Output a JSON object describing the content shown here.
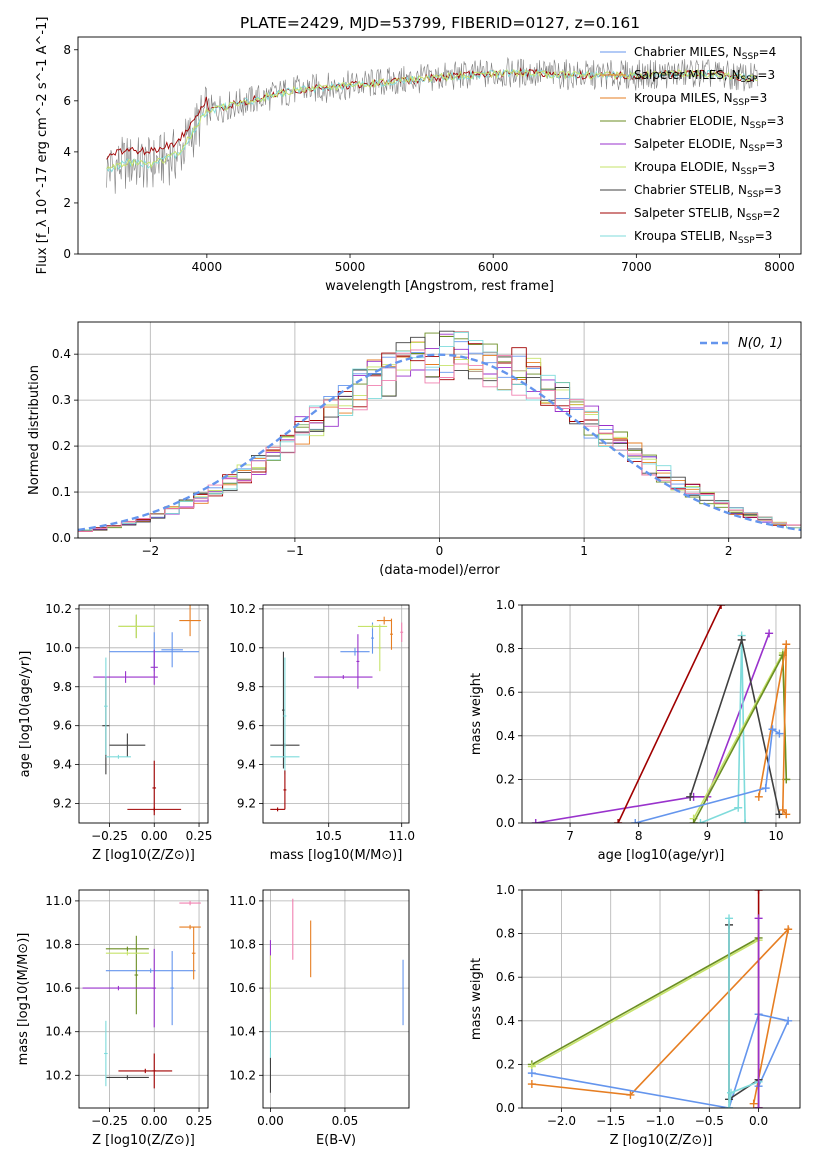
{
  "colors": {
    "cornflowerblue": "#6495ed",
    "orange": "#e67e22",
    "olive": "#6b8e23",
    "purple": "#9932cc",
    "yellowgreen": "#c6e36a",
    "darkgray": "#404040",
    "darkred": "#a00000",
    "cyan": "#7fdbdb",
    "pink": "#f080b0",
    "gray": "#808080"
  },
  "chart_data": [
    {
      "panel": "spectrum",
      "type": "line",
      "title": "PLATE=2429, MJD=53799, FIBERID=0127, z=0.161",
      "xlabel": "wavelength [Angstrom, rest frame]",
      "ylabel": "Flux [f_λ 10^-17 erg cm^-2 s^-1 A^-1]",
      "xlim": [
        3100,
        8150
      ],
      "ylim": [
        0,
        8.5
      ],
      "xticks": [
        "4000",
        "5000",
        "6000",
        "7000",
        "8000"
      ],
      "yticks": [
        "0",
        "2",
        "4",
        "6",
        "8"
      ],
      "legend_position": "right",
      "legend": [
        {
          "label": "Chabrier MILES, N",
          "sub": "SSP",
          "suffix": "=4",
          "color": "#6495ed"
        },
        {
          "label": "Salpeter MILES, N",
          "sub": "SSP",
          "suffix": "=3",
          "color": "#e67e22"
        },
        {
          "label": "Kroupa MILES, N",
          "sub": "SSP",
          "suffix": "=3",
          "color": "#e67e22"
        },
        {
          "label": "Chabrier ELODIE, N",
          "sub": "SSP",
          "suffix": "=3",
          "color": "#6b8e23"
        },
        {
          "label": "Salpeter ELODIE, N",
          "sub": "SSP",
          "suffix": "=3",
          "color": "#9932cc"
        },
        {
          "label": "Kroupa ELODIE, N",
          "sub": "SSP",
          "suffix": "=3",
          "color": "#c6e36a"
        },
        {
          "label": "Chabrier STELIB, N",
          "sub": "SSP",
          "suffix": "=3",
          "color": "#404040"
        },
        {
          "label": "Salpeter STELIB, N",
          "sub": "SSP",
          "suffix": "=2",
          "color": "#a00000"
        },
        {
          "label": "Kroupa STELIB, N",
          "sub": "SSP",
          "suffix": "=3",
          "color": "#7fdbdb"
        }
      ],
      "continuum_shape": {
        "x": [
          3300,
          3450,
          3600,
          3800,
          4000,
          4300,
          4600,
          5000,
          5400,
          5800,
          6200,
          6600,
          7000,
          7400,
          7800
        ],
        "y": [
          3.3,
          3.6,
          3.5,
          3.9,
          5.6,
          6.0,
          6.4,
          6.6,
          6.8,
          7.0,
          7.1,
          7.0,
          7.0,
          7.1,
          6.9
        ]
      }
    },
    {
      "panel": "residual_histogram",
      "type": "line",
      "xlabel": "(data-model)/error",
      "ylabel": "Normed distribution",
      "xlim": [
        -2.5,
        2.5
      ],
      "ylim": [
        0,
        0.47
      ],
      "xticks": [
        "−2",
        "−1",
        "0",
        "1",
        "2"
      ],
      "yticks": [
        "0.0",
        "0.1",
        "0.2",
        "0.3",
        "0.4"
      ],
      "grid": true,
      "legend_position": "top-right",
      "legend": [
        {
          "label": "N(0, 1)",
          "color": "#6495ed",
          "style": "dashed"
        }
      ]
    },
    {
      "panel": "age_vs_Z",
      "type": "scatter",
      "xlabel": "Z [log10(Z/Z⊙)]",
      "ylabel": "age  [log10(age/yr)]",
      "xlim": [
        -0.42,
        0.3
      ],
      "ylim": [
        9.1,
        10.22
      ],
      "xticks": [
        "−0.25",
        "0.00",
        "0.25"
      ],
      "yticks": [
        "9.2",
        "9.4",
        "9.6",
        "9.8",
        "10.0",
        "10.2"
      ],
      "grid": true,
      "points": [
        {
          "x": 0.0,
          "y": 9.98,
          "xerr": 0.25,
          "yerr": 0.1,
          "color": "#6495ed"
        },
        {
          "x": 0.1,
          "y": 9.99,
          "xerr": 0.06,
          "yerr": 0.09,
          "color": "#6495ed"
        },
        {
          "x": 0.2,
          "y": 10.14,
          "xerr": 0.06,
          "yerr": 0.08,
          "color": "#e67e22"
        },
        {
          "x": -0.1,
          "y": 10.11,
          "xerr": 0.1,
          "yerr": 0.06,
          "color": "#6b8e23"
        },
        {
          "x": -0.1,
          "y": 10.11,
          "xerr": 0.1,
          "yerr": 0.06,
          "color": "#c6e36a"
        },
        {
          "x": -0.16,
          "y": 9.85,
          "xerr": 0.18,
          "yerr": 0.03,
          "color": "#9932cc"
        },
        {
          "x": 0.0,
          "y": 9.9,
          "xerr": 0.02,
          "yerr": 0.09,
          "color": "#9932cc"
        },
        {
          "x": -0.15,
          "y": 9.5,
          "xerr": 0.1,
          "yerr": 0.06,
          "color": "#404040"
        },
        {
          "x": -0.27,
          "y": 9.6,
          "xerr": 0.02,
          "yerr": 0.25,
          "color": "#404040"
        },
        {
          "x": -0.2,
          "y": 9.44,
          "xerr": 0.07,
          "yerr": 0.01,
          "color": "#7fdbdb"
        },
        {
          "x": -0.27,
          "y": 9.7,
          "xerr": 0.01,
          "yerr": 0.25,
          "color": "#7fdbdb"
        },
        {
          "x": 0.0,
          "y": 9.17,
          "xerr": 0.15,
          "yerr": 0.01,
          "color": "#a00000"
        },
        {
          "x": 0.0,
          "y": 9.28,
          "xerr": 0.01,
          "yerr": 0.14,
          "color": "#a00000"
        }
      ]
    },
    {
      "panel": "age_vs_mass",
      "type": "scatter",
      "xlabel": "mass [log10(M/M⊙)]",
      "xlim": [
        10.05,
        11.05
      ],
      "ylim": [
        9.1,
        10.22
      ],
      "xticks": [
        "10.5",
        "11.0"
      ],
      "yticks": [
        "9.2",
        "9.4",
        "9.6",
        "9.8",
        "10.0",
        "10.2"
      ],
      "grid": true,
      "points": [
        {
          "x": 10.68,
          "y": 9.98,
          "xerr": 0.1,
          "yerr": 0.02,
          "color": "#6495ed"
        },
        {
          "x": 10.8,
          "y": 10.05,
          "xerr": 0.01,
          "yerr": 0.08,
          "color": "#6495ed"
        },
        {
          "x": 10.88,
          "y": 10.14,
          "xerr": 0.05,
          "yerr": 0.02,
          "color": "#e67e22"
        },
        {
          "x": 10.93,
          "y": 10.07,
          "xerr": 0.01,
          "yerr": 0.08,
          "color": "#e67e22"
        },
        {
          "x": 10.8,
          "y": 10.11,
          "xerr": 0.1,
          "yerr": 0.01,
          "color": "#c6e36a"
        },
        {
          "x": 10.85,
          "y": 10.0,
          "xerr": 0.01,
          "yerr": 0.12,
          "color": "#c6e36a"
        },
        {
          "x": 10.6,
          "y": 9.85,
          "xerr": 0.2,
          "yerr": 0.01,
          "color": "#9932cc"
        },
        {
          "x": 10.7,
          "y": 9.93,
          "xerr": 0.01,
          "yerr": 0.14,
          "color": "#9932cc"
        },
        {
          "x": 10.2,
          "y": 9.5,
          "xerr": 0.1,
          "yerr": 0.01,
          "color": "#404040"
        },
        {
          "x": 10.19,
          "y": 9.68,
          "xerr": 0.01,
          "yerr": 0.3,
          "color": "#404040"
        },
        {
          "x": 10.2,
          "y": 9.44,
          "xerr": 0.1,
          "yerr": 0.01,
          "color": "#7fdbdb"
        },
        {
          "x": 10.2,
          "y": 9.65,
          "xerr": 0.01,
          "yerr": 0.3,
          "color": "#7fdbdb"
        },
        {
          "x": 10.15,
          "y": 9.17,
          "xerr": 0.05,
          "yerr": 0.01,
          "color": "#a00000"
        },
        {
          "x": 10.2,
          "y": 9.27,
          "xerr": 0.01,
          "yerr": 0.1,
          "color": "#a00000"
        },
        {
          "x": 11.0,
          "y": 10.08,
          "xerr": 0.01,
          "yerr": 0.05,
          "color": "#f080b0"
        }
      ]
    },
    {
      "panel": "weight_vs_age",
      "type": "line",
      "xlabel": "age  [log10(age/yr)]",
      "ylabel": "mass weight",
      "xlim": [
        6.3,
        10.35
      ],
      "ylim": [
        0,
        1.0
      ],
      "xticks": [
        "7",
        "8",
        "9",
        "10"
      ],
      "yticks": [
        "0.0",
        "0.2",
        "0.4",
        "0.6",
        "0.8",
        "1.0"
      ],
      "grid": true,
      "series": [
        {
          "color": "#9932cc",
          "x": [
            6.5,
            8.8,
            9.0,
            9.9
          ],
          "y": [
            0.0,
            0.12,
            0.12,
            0.87
          ]
        },
        {
          "color": "#a00000",
          "x": [
            7.7,
            9.2
          ],
          "y": [
            0.0,
            1.0
          ]
        },
        {
          "color": "#7fdbdb",
          "x": [
            8.9,
            9.45,
            9.5,
            9.55
          ],
          "y": [
            0.0,
            0.07,
            0.86,
            0.0
          ]
        },
        {
          "color": "#404040",
          "x": [
            8.75,
            9.5,
            10.05
          ],
          "y": [
            0.12,
            0.84,
            0.04
          ]
        },
        {
          "color": "#c6e36a",
          "x": [
            8.8,
            10.1,
            10.15
          ],
          "y": [
            0.02,
            0.78,
            0.2
          ]
        },
        {
          "color": "#6b8e23",
          "x": [
            8.8,
            10.1,
            10.15
          ],
          "y": [
            0.0,
            0.77,
            0.2
          ]
        },
        {
          "color": "#e67e22",
          "x": [
            9.75,
            10.15,
            10.1,
            10.15
          ],
          "y": [
            0.12,
            0.82,
            0.06,
            0.04
          ]
        },
        {
          "color": "#6495ed",
          "x": [
            7.95,
            9.85,
            9.95,
            10.05
          ],
          "y": [
            0.0,
            0.16,
            0.43,
            0.41
          ]
        }
      ]
    },
    {
      "panel": "mass_vs_Z",
      "type": "scatter",
      "xlabel": "Z [log10(Z/Z⊙)]",
      "ylabel": "mass [log10(M/M⊙)]",
      "xlim": [
        -0.42,
        0.3
      ],
      "ylim": [
        10.05,
        11.05
      ],
      "xticks": [
        "−0.25",
        "0.00",
        "0.25"
      ],
      "yticks": [
        "10.2",
        "10.4",
        "10.6",
        "10.8",
        "11.0"
      ],
      "grid": true,
      "points": [
        {
          "x": -0.02,
          "y": 10.68,
          "xerr": 0.25,
          "yerr": 0.01,
          "color": "#6495ed"
        },
        {
          "x": 0.1,
          "y": 10.6,
          "xerr": 0.01,
          "yerr": 0.17,
          "color": "#6495ed"
        },
        {
          "x": 0.2,
          "y": 10.88,
          "xerr": 0.06,
          "yerr": 0.01,
          "color": "#e67e22"
        },
        {
          "x": 0.22,
          "y": 10.76,
          "xerr": 0.01,
          "yerr": 0.12,
          "color": "#e67e22"
        },
        {
          "x": 0.2,
          "y": 10.99,
          "xerr": 0.06,
          "yerr": 0.01,
          "color": "#f080b0"
        },
        {
          "x": -0.15,
          "y": 10.78,
          "xerr": 0.12,
          "yerr": 0.01,
          "color": "#6b8e23"
        },
        {
          "x": -0.1,
          "y": 10.66,
          "xerr": 0.01,
          "yerr": 0.18,
          "color": "#6b8e23"
        },
        {
          "x": -0.15,
          "y": 10.76,
          "xerr": 0.12,
          "yerr": 0.01,
          "color": "#c6e36a"
        },
        {
          "x": -0.2,
          "y": 10.6,
          "xerr": 0.2,
          "yerr": 0.01,
          "color": "#9932cc"
        },
        {
          "x": 0.0,
          "y": 10.6,
          "xerr": 0.01,
          "yerr": 0.18,
          "color": "#9932cc"
        },
        {
          "x": -0.15,
          "y": 10.19,
          "xerr": 0.12,
          "yerr": 0.01,
          "color": "#404040"
        },
        {
          "x": -0.27,
          "y": 10.3,
          "xerr": 0.01,
          "yerr": 0.15,
          "color": "#7fdbdb"
        },
        {
          "x": -0.05,
          "y": 10.22,
          "xerr": 0.15,
          "yerr": 0.01,
          "color": "#a00000"
        },
        {
          "x": 0.0,
          "y": 10.22,
          "xerr": 0.01,
          "yerr": 0.08,
          "color": "#a00000"
        }
      ]
    },
    {
      "panel": "mass_vs_EBV",
      "type": "scatter",
      "xlabel": "E(B-V)",
      "xlim": [
        -0.005,
        0.093
      ],
      "ylim": [
        10.05,
        11.05
      ],
      "xticks": [
        "0.00",
        "0.05"
      ],
      "yticks": [
        "10.2",
        "10.4",
        "10.6",
        "10.8",
        "11.0"
      ],
      "grid": true,
      "points": [
        {
          "x": 0.015,
          "y": 10.87,
          "xerr": 0.0,
          "yerr": 0.14,
          "color": "#f080b0"
        },
        {
          "x": 0.027,
          "y": 10.78,
          "xerr": 0.0,
          "yerr": 0.13,
          "color": "#e67e22"
        },
        {
          "x": 0.0,
          "y": 10.7,
          "xerr": 0.0,
          "yerr": 0.12,
          "color": "#9932cc"
        },
        {
          "x": 0.0,
          "y": 10.6,
          "xerr": 0.0,
          "yerr": 0.15,
          "color": "#c6e36a"
        },
        {
          "x": 0.0,
          "y": 10.35,
          "xerr": 0.0,
          "yerr": 0.1,
          "color": "#7fdbdb"
        },
        {
          "x": 0.0,
          "y": 10.2,
          "xerr": 0.0,
          "yerr": 0.08,
          "color": "#404040"
        },
        {
          "x": 0.089,
          "y": 10.58,
          "xerr": 0.0,
          "yerr": 0.15,
          "color": "#6495ed"
        }
      ]
    },
    {
      "panel": "weight_vs_Z",
      "type": "line",
      "xlabel": "Z [log10(Z/Z⊙)]",
      "ylabel": "mass weight",
      "xlim": [
        -2.4,
        0.42
      ],
      "ylim": [
        0,
        1.0
      ],
      "xticks": [
        "−2.0",
        "−1.5",
        "−1.0",
        "−0.5",
        "0.0"
      ],
      "yticks": [
        "0.0",
        "0.2",
        "0.4",
        "0.6",
        "0.8",
        "1.0"
      ],
      "grid": true,
      "series": [
        {
          "color": "#6b8e23",
          "x": [
            -2.3,
            0.0
          ],
          "y": [
            0.2,
            0.78
          ]
        },
        {
          "color": "#c6e36a",
          "x": [
            -2.3,
            0.0
          ],
          "y": [
            0.19,
            0.77
          ]
        },
        {
          "color": "#e67e22",
          "x": [
            -2.3,
            -1.3,
            0.3,
            -0.05
          ],
          "y": [
            0.11,
            0.06,
            0.82,
            0.02
          ]
        },
        {
          "color": "#6495ed",
          "x": [
            -2.3,
            -0.3,
            0.0,
            0.3,
            0.0
          ],
          "y": [
            0.16,
            0.0,
            0.43,
            0.4,
            0.1
          ]
        },
        {
          "color": "#404040",
          "x": [
            -0.3,
            -0.3,
            0.0
          ],
          "y": [
            0.84,
            0.04,
            0.13
          ]
        },
        {
          "color": "#7fdbdb",
          "x": [
            -0.3,
            -0.3,
            -0.28,
            0.0
          ],
          "y": [
            0.87,
            0.0,
            0.07,
            0.12
          ]
        },
        {
          "color": "#a00000",
          "x": [
            0.0,
            0.0
          ],
          "y": [
            0.0,
            1.0
          ]
        },
        {
          "color": "#9932cc",
          "x": [
            0.0,
            0.0
          ],
          "y": [
            0.0,
            0.87
          ]
        }
      ]
    }
  ]
}
